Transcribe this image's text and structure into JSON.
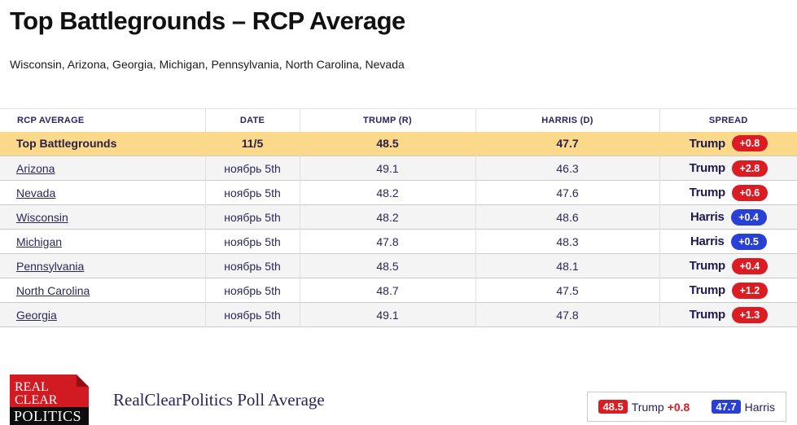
{
  "page": {
    "title": "Top Battlegrounds – RCP Average",
    "subtitle": "Wisconsin, Arizona, Georgia, Michigan, Pennsylvania, North Carolina, Nevada"
  },
  "table": {
    "headers": [
      "RCP AVERAGE",
      "DATE",
      "TRUMP (R)",
      "HARRIS (D)",
      "SPREAD"
    ],
    "rows": [
      {
        "name": "Top Battlegrounds",
        "date": "11/5",
        "trump": "48.5",
        "harris": "47.7",
        "leader": "Trump",
        "margin": "+0.8",
        "party": "trump",
        "highlight": true,
        "link": false
      },
      {
        "name": "Arizona",
        "date": "ноябрь 5th",
        "trump": "49.1",
        "harris": "46.3",
        "leader": "Trump",
        "margin": "+2.8",
        "party": "trump",
        "highlight": false,
        "link": true
      },
      {
        "name": "Nevada",
        "date": "ноябрь 5th",
        "trump": "48.2",
        "harris": "47.6",
        "leader": "Trump",
        "margin": "+0.6",
        "party": "trump",
        "highlight": false,
        "link": true
      },
      {
        "name": "Wisconsin",
        "date": "ноябрь 5th",
        "trump": "48.2",
        "harris": "48.6",
        "leader": "Harris",
        "margin": "+0.4",
        "party": "harris",
        "highlight": false,
        "link": true
      },
      {
        "name": "Michigan",
        "date": "ноябрь 5th",
        "trump": "47.8",
        "harris": "48.3",
        "leader": "Harris",
        "margin": "+0.5",
        "party": "harris",
        "highlight": false,
        "link": true
      },
      {
        "name": "Pennsylvania",
        "date": "ноябрь 5th",
        "trump": "48.5",
        "harris": "48.1",
        "leader": "Trump",
        "margin": "+0.4",
        "party": "trump",
        "highlight": false,
        "link": true
      },
      {
        "name": "North Carolina",
        "date": "ноябрь 5th",
        "trump": "48.7",
        "harris": "47.5",
        "leader": "Trump",
        "margin": "+1.2",
        "party": "trump",
        "highlight": false,
        "link": true
      },
      {
        "name": "Georgia",
        "date": "ноябрь 5th",
        "trump": "49.1",
        "harris": "47.8",
        "leader": "Trump",
        "margin": "+1.3",
        "party": "trump",
        "highlight": false,
        "link": true
      }
    ]
  },
  "footer": {
    "logo_lines": [
      "REAL",
      "CLEAR",
      "POLITICS"
    ],
    "caption": "RealClearPolitics Poll Average",
    "legend": {
      "trump_value": "48.5",
      "trump_label": "Trump",
      "trump_margin": "+0.8",
      "harris_value": "47.7",
      "harris_label": "Harris"
    }
  },
  "colors": {
    "accent_red": "#dc1c23",
    "accent_blue": "#2840d5",
    "highlight_yellow": "#fbd98a",
    "navy_text": "#2b2756",
    "logo_red": "#d11a21",
    "logo_fold": "#941016",
    "row_alt_gray": "#f4f4f4"
  }
}
